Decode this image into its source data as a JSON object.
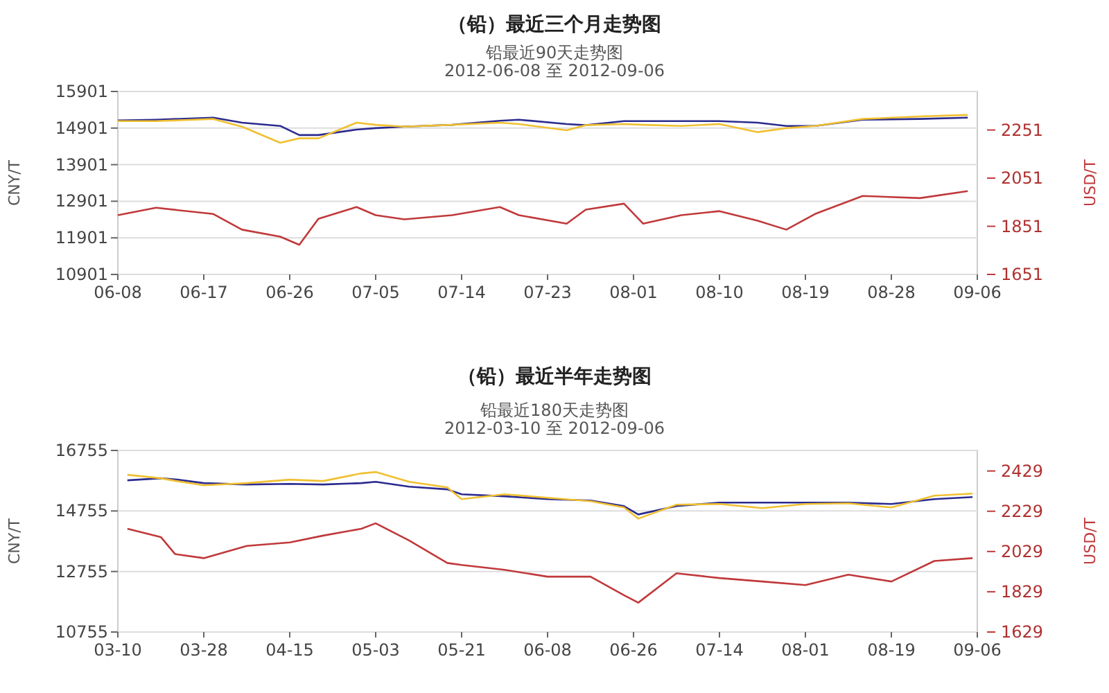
{
  "chart_data": [
    {
      "type": "line",
      "title": "（铅）最近三个月走势图",
      "subtitle": "铅最近90天走势图\n2012-06-08 至 2012-09-06",
      "ylabel": "CNY/T",
      "y2label": "USD/T",
      "grid": "y",
      "marker": "none",
      "line_style": "solid",
      "x": [
        "2012-06-08",
        "2012-06-12",
        "2012-06-18",
        "2012-06-21",
        "2012-06-25",
        "2012-06-27",
        "2012-06-29",
        "2012-07-03",
        "2012-07-05",
        "2012-07-08",
        "2012-07-13",
        "2012-07-18",
        "2012-07-20",
        "2012-07-25",
        "2012-07-27",
        "2012-07-31",
        "2012-08-02",
        "2012-08-06",
        "2012-08-10",
        "2012-08-14",
        "2012-08-17",
        "2012-08-20",
        "2012-08-25",
        "2012-08-31",
        "2012-09-05"
      ],
      "xlim": [
        "2012-06-08",
        "2012-09-06"
      ],
      "xticks": [
        {
          "value": "2012-06-08",
          "label": "06-08"
        },
        {
          "value": "2012-06-17",
          "label": "06-17"
        },
        {
          "value": "2012-06-26",
          "label": "06-26"
        },
        {
          "value": "2012-07-05",
          "label": "07-05"
        },
        {
          "value": "2012-07-14",
          "label": "07-14"
        },
        {
          "value": "2012-07-23",
          "label": "07-23"
        },
        {
          "value": "2012-08-01",
          "label": "08-01"
        },
        {
          "value": "2012-08-10",
          "label": "08-10"
        },
        {
          "value": "2012-08-19",
          "label": "08-19"
        },
        {
          "value": "2012-08-28",
          "label": "08-28"
        },
        {
          "value": "2012-09-06",
          "label": "09-06"
        }
      ],
      "ylim": [
        10901,
        15901
      ],
      "yticks": [
        10901,
        11901,
        12901,
        13901,
        14901,
        15901
      ],
      "y2lim": [
        1651,
        2411
      ],
      "y2ticks": [
        1651,
        1851,
        2051,
        2251
      ],
      "series": [
        {
          "color": "#2b2b8f",
          "values": [
            15110,
            15130,
            15185,
            15050,
            14960,
            14710,
            14710,
            14860,
            14900,
            14940,
            14990,
            15100,
            15130,
            15010,
            14980,
            15090,
            15090,
            15090,
            15090,
            15050,
            14960,
            14960,
            15130,
            15150,
            15185
          ]
        },
        {
          "color": "#f0c030",
          "values": [
            15090,
            15090,
            15150,
            14940,
            14500,
            14620,
            14620,
            15050,
            14990,
            14940,
            14990,
            15050,
            15010,
            14840,
            14980,
            15010,
            14990,
            14960,
            15010,
            14790,
            14900,
            14960,
            15150,
            15220,
            15260
          ]
        },
        {
          "color": "#c0393b",
          "axis": "y2",
          "values": [
            1897,
            1928,
            1902,
            1837,
            1808,
            1774,
            1882,
            1931,
            1897,
            1880,
            1897,
            1931,
            1897,
            1862,
            1920,
            1945,
            1862,
            1897,
            1914,
            1874,
            1837,
            1902,
            1977,
            1968,
            1997
          ]
        }
      ]
    },
    {
      "type": "line",
      "title": "（铅）最近半年走势图",
      "subtitle": "铅最近180天走势图\n2012-03-10 至 2012-09-06",
      "ylabel": "CNY/T",
      "y2label": "USD/T",
      "grid": "y",
      "marker": "none",
      "line_style": "solid",
      "x": [
        "2012-03-12",
        "2012-03-19",
        "2012-03-22",
        "2012-03-28",
        "2012-04-06",
        "2012-04-15",
        "2012-04-22",
        "2012-04-30",
        "2012-05-03",
        "2012-05-10",
        "2012-05-18",
        "2012-05-21",
        "2012-05-30",
        "2012-06-08",
        "2012-06-17",
        "2012-06-24",
        "2012-06-27",
        "2012-07-05",
        "2012-07-14",
        "2012-07-23",
        "2012-08-01",
        "2012-08-10",
        "2012-08-19",
        "2012-08-28",
        "2012-09-05"
      ],
      "xlim": [
        "2012-03-10",
        "2012-09-06"
      ],
      "xticks": [
        {
          "value": "2012-03-10",
          "label": "03-10"
        },
        {
          "value": "2012-03-28",
          "label": "03-28"
        },
        {
          "value": "2012-04-15",
          "label": "04-15"
        },
        {
          "value": "2012-05-03",
          "label": "05-03"
        },
        {
          "value": "2012-05-21",
          "label": "05-21"
        },
        {
          "value": "2012-06-08",
          "label": "06-08"
        },
        {
          "value": "2012-06-26",
          "label": "06-26"
        },
        {
          "value": "2012-07-14",
          "label": "07-14"
        },
        {
          "value": "2012-08-01",
          "label": "08-01"
        },
        {
          "value": "2012-08-19",
          "label": "08-19"
        },
        {
          "value": "2012-09-06",
          "label": "09-06"
        }
      ],
      "ylim": [
        10755,
        16755
      ],
      "yticks": [
        10755,
        12755,
        14755,
        16755
      ],
      "y2lim": [
        1629,
        2531
      ],
      "y2ticks": [
        1629,
        1829,
        2029,
        2229,
        2429
      ],
      "series": [
        {
          "color": "#2b2b8f",
          "values": [
            15767,
            15836,
            15800,
            15675,
            15630,
            15650,
            15630,
            15675,
            15720,
            15560,
            15470,
            15307,
            15240,
            15146,
            15100,
            14916,
            14640,
            14916,
            15031,
            15031,
            15031,
            15031,
            14985,
            15146,
            15215
          ]
        },
        {
          "color": "#f0c030",
          "values": [
            15951,
            15836,
            15750,
            15606,
            15675,
            15790,
            15744,
            15997,
            16043,
            15720,
            15537,
            15146,
            15307,
            15191,
            15077,
            14870,
            14502,
            14962,
            14985,
            14847,
            14985,
            15008,
            14870,
            15260,
            15330
          ]
        },
        {
          "color": "#c0393b",
          "axis": "y2",
          "values": [
            2142,
            2101,
            2016,
            1996,
            2057,
            2074,
            2108,
            2142,
            2169,
            2084,
            1972,
            1962,
            1938,
            1904,
            1904,
            1812,
            1775,
            1921,
            1897,
            1880,
            1862,
            1914,
            1880,
            1982,
            1996
          ]
        }
      ]
    }
  ]
}
